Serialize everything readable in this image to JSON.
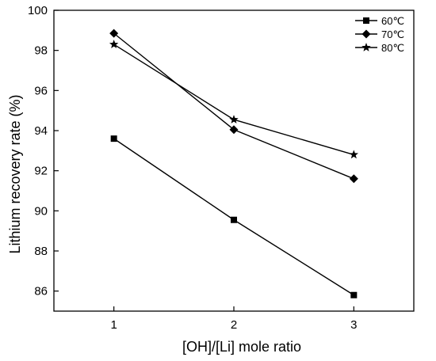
{
  "chart_data": {
    "type": "line",
    "xlabel": "[OH]/[Li] mole ratio",
    "ylabel": "Lithium recovery rate (%)",
    "x": [
      1,
      2,
      3
    ],
    "xticks": [
      "1",
      "2",
      "3"
    ],
    "xlim": [
      0.5,
      3.5
    ],
    "ylim": [
      85,
      100
    ],
    "yticks": [
      86,
      88,
      90,
      92,
      94,
      96,
      98,
      100
    ],
    "legend_position": "top-right",
    "grid": false,
    "series": [
      {
        "name": "60℃",
        "marker": "square",
        "values": [
          93.6,
          89.55,
          85.8
        ]
      },
      {
        "name": "70℃",
        "marker": "diamond",
        "values": [
          98.85,
          94.05,
          91.6
        ]
      },
      {
        "name": "80℃",
        "marker": "star",
        "values": [
          98.3,
          94.55,
          92.8
        ]
      }
    ]
  }
}
